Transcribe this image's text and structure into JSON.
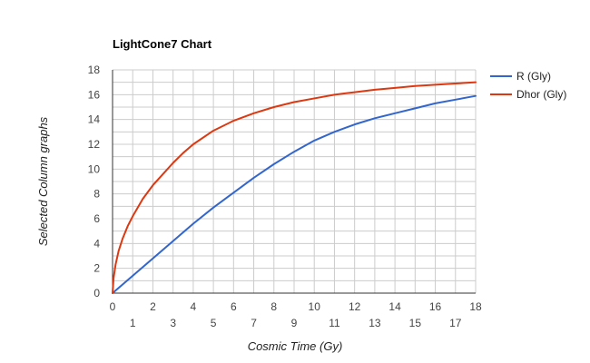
{
  "chart_data": {
    "type": "line",
    "title": "LightCone7 Chart",
    "xlabel": "Cosmic Time (Gy)",
    "ylabel": "Selected Column graphs",
    "xlim": [
      0,
      18
    ],
    "ylim": [
      0,
      18
    ],
    "x_ticks_upper": [
      "0",
      "2",
      "4",
      "6",
      "8",
      "10",
      "12",
      "14",
      "16",
      "18"
    ],
    "x_ticks_lower": [
      "1",
      "3",
      "5",
      "7",
      "9",
      "11",
      "13",
      "15",
      "17"
    ],
    "y_ticks": [
      "0",
      "2",
      "4",
      "6",
      "8",
      "10",
      "12",
      "14",
      "16",
      "18"
    ],
    "grid": true,
    "legend_position": "right",
    "series": [
      {
        "name": "R (Gly)",
        "color": "#3366cc",
        "x": [
          0,
          1,
          2,
          3,
          4,
          5,
          6,
          7,
          8,
          9,
          10,
          11,
          12,
          13,
          14,
          15,
          16,
          17,
          18
        ],
        "y": [
          0,
          1.4,
          2.8,
          4.2,
          5.6,
          6.9,
          8.1,
          9.3,
          10.4,
          11.4,
          12.3,
          13.0,
          13.6,
          14.1,
          14.5,
          14.9,
          15.3,
          15.6,
          15.9
        ]
      },
      {
        "name": "Dhor (Gly)",
        "color": "#dc3912",
        "x": [
          0,
          0.05,
          0.15,
          0.3,
          0.5,
          0.75,
          1,
          1.5,
          2,
          2.5,
          3,
          3.5,
          4,
          5,
          6,
          7,
          8,
          9,
          10,
          11,
          12,
          13,
          14,
          15,
          16,
          17,
          18
        ],
        "y": [
          0,
          1.2,
          2.3,
          3.4,
          4.4,
          5.4,
          6.2,
          7.6,
          8.7,
          9.6,
          10.5,
          11.3,
          12.0,
          13.1,
          13.9,
          14.5,
          15.0,
          15.4,
          15.7,
          16.0,
          16.2,
          16.4,
          16.55,
          16.7,
          16.8,
          16.9,
          17.0
        ]
      }
    ]
  }
}
